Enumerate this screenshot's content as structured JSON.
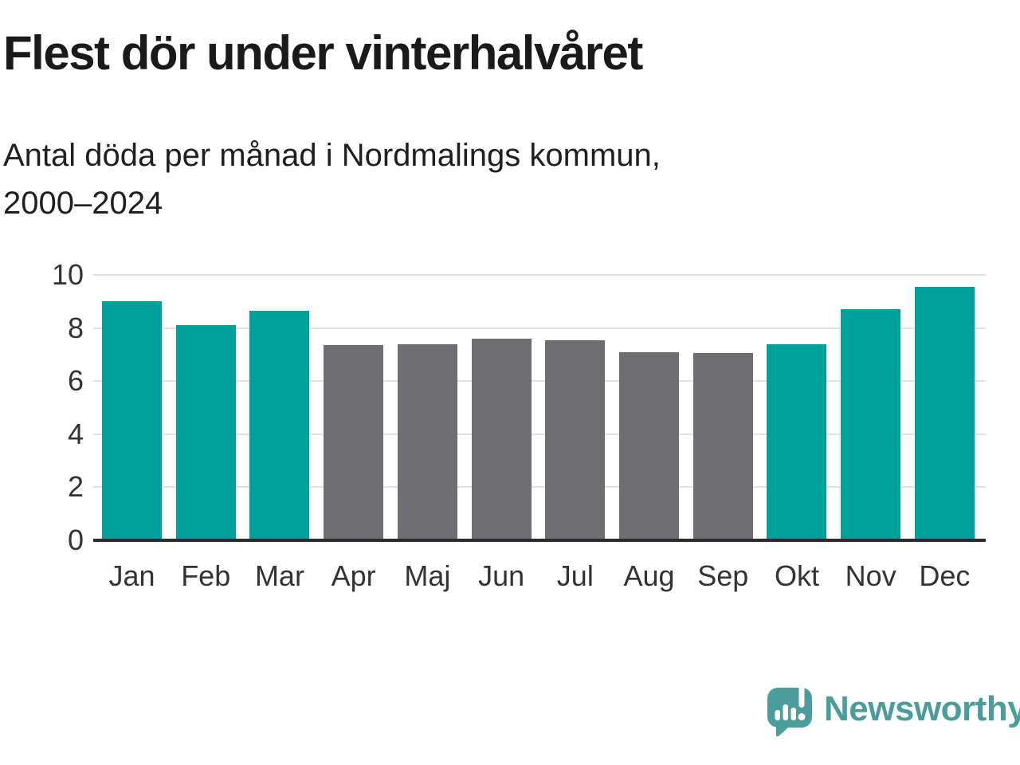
{
  "header": {
    "title": "Flest dör under vinterhalvåret",
    "subtitle_line1": "Antal döda per månad i Nordmalings kommun,",
    "subtitle_line2": "2000–2024"
  },
  "chart_data": {
    "type": "bar",
    "title": "Flest dör under vinterhalvåret",
    "subtitle": "Antal döda per månad i Nordmalings kommun, 2000–2024",
    "categories": [
      "Jan",
      "Feb",
      "Mar",
      "Apr",
      "Maj",
      "Jun",
      "Jul",
      "Aug",
      "Sep",
      "Okt",
      "Nov",
      "Dec"
    ],
    "values": [
      9.0,
      8.1,
      8.65,
      7.35,
      7.4,
      7.6,
      7.55,
      7.1,
      7.05,
      7.4,
      8.7,
      9.55
    ],
    "bar_groups": [
      "winter",
      "winter",
      "winter",
      "summer",
      "summer",
      "summer",
      "summer",
      "summer",
      "summer",
      "winter",
      "winter",
      "winter"
    ],
    "xlabel": "",
    "ylabel": "",
    "ylim": [
      0,
      10
    ],
    "yticks": [
      0,
      2,
      4,
      6,
      8,
      10
    ],
    "grid": true,
    "legend": "none",
    "colors": {
      "winter_bar": "#00a09b",
      "summer_bar": "#6e6e72",
      "gridline": "#e1e1e1",
      "axis_line": "#2b2b2e",
      "axis_text": "#333333",
      "title_text": "#1a1a1a"
    }
  },
  "footer": {
    "brand": "Newsworthy",
    "brand_color": "#4a9d9a",
    "logo_icon": "speech-bubble-bar-chart-icon"
  }
}
